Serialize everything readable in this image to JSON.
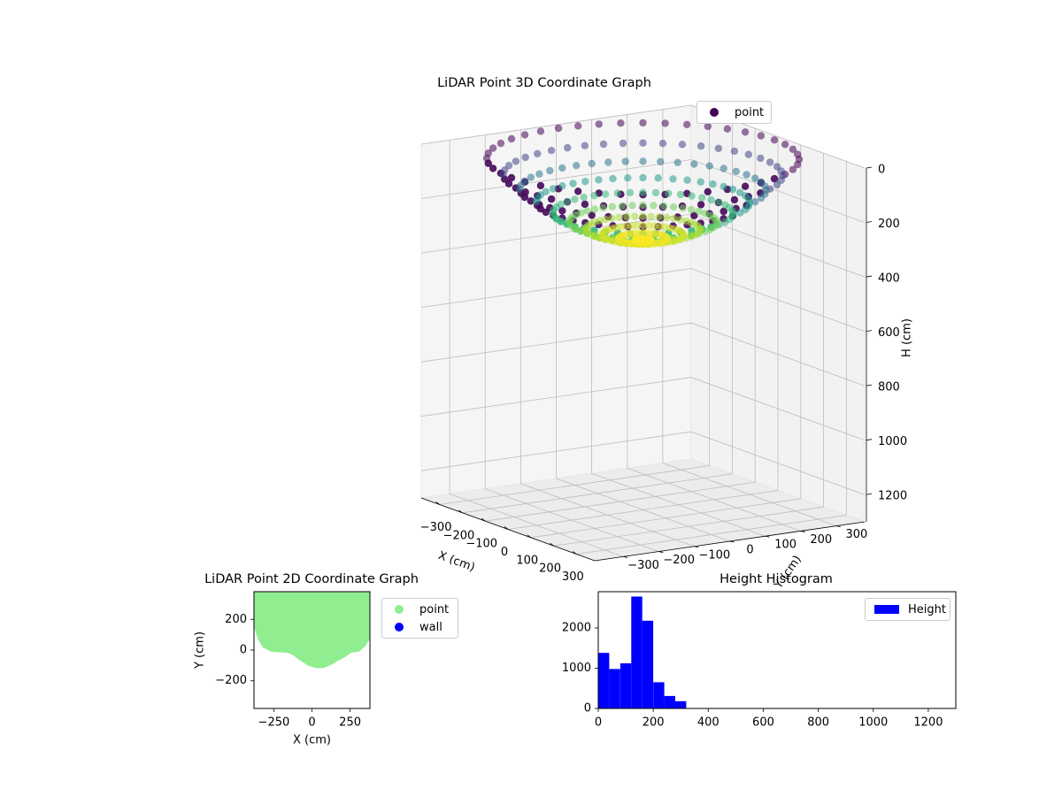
{
  "figure": {
    "background": "#ffffff"
  },
  "chart_data": [
    {
      "type": "scatter3d",
      "title": "LiDAR Point 3D Coordinate Graph",
      "xlabel": "X (cm)",
      "ylabel": "Y (cm)",
      "zlabel": "H (cm)",
      "x_ticks": [
        -300,
        -200,
        -100,
        0,
        100,
        200,
        300
      ],
      "x_tick_labels": [
        "−300",
        "−200",
        "−100",
        "0",
        "100",
        "200",
        "300"
      ],
      "y_ticks": [
        -300,
        -200,
        -100,
        0,
        100,
        200,
        300
      ],
      "y_tick_labels": [
        "−300",
        "−200",
        "−100",
        "0",
        "100",
        "200",
        "300"
      ],
      "z_ticks": [
        0,
        200,
        400,
        600,
        800,
        1000,
        1200
      ],
      "z_tick_labels": [
        "0",
        "200",
        "400",
        "600",
        "800",
        "1000",
        "1200"
      ],
      "xlim": [
        -380,
        380
      ],
      "ylim": [
        -380,
        380
      ],
      "zlim": [
        0,
        1300
      ],
      "z_inverted": true,
      "colormap": "viridis",
      "grid": true,
      "legend": {
        "placement": "upper-right",
        "entries": [
          {
            "label": "point",
            "color": "#440154"
          }
        ]
      },
      "shape": "bowl-shaped point cloud",
      "rim_radius": 370,
      "bottom_center_height": 310,
      "rim_height": 10
    },
    {
      "type": "scatter",
      "title": "LiDAR Point 2D Coordinate Graph",
      "xlabel": "X (cm)",
      "ylabel": "Y (cm)",
      "x_ticks": [
        -250,
        0,
        250
      ],
      "x_tick_labels": [
        "−250",
        "0",
        "250"
      ],
      "y_ticks": [
        -200,
        0,
        200
      ],
      "y_tick_labels": [
        "−200",
        "0",
        "200"
      ],
      "xlim": [
        -380,
        380
      ],
      "ylim": [
        -380,
        380
      ],
      "series": [
        {
          "name": "point",
          "color": "#90ee90"
        },
        {
          "name": "wall",
          "color": "#0000ff"
        }
      ],
      "legend": {
        "placement": "outside-right"
      },
      "filled_region_outline": [
        [
          -390,
          380
        ],
        [
          -390,
          300
        ],
        [
          -380,
          230
        ],
        [
          -360,
          150
        ],
        [
          -340,
          80
        ],
        [
          -310,
          30
        ],
        [
          -260,
          5
        ],
        [
          -160,
          0
        ],
        [
          -120,
          -15
        ],
        [
          -80,
          -45
        ],
        [
          -20,
          -85
        ],
        [
          30,
          -100
        ],
        [
          70,
          -100
        ],
        [
          120,
          -80
        ],
        [
          170,
          -50
        ],
        [
          210,
          -30
        ],
        [
          250,
          0
        ],
        [
          300,
          5
        ],
        [
          340,
          40
        ],
        [
          370,
          90
        ],
        [
          390,
          150
        ],
        [
          390,
          380
        ]
      ]
    },
    {
      "type": "histogram",
      "title": "Height Histogram",
      "xlabel": "",
      "ylabel": "",
      "x_ticks": [
        0,
        200,
        400,
        600,
        800,
        1000,
        1200
      ],
      "x_tick_labels": [
        "0",
        "200",
        "400",
        "600",
        "800",
        "1000",
        "1200"
      ],
      "y_ticks": [
        0,
        1000,
        2000
      ],
      "y_tick_labels": [
        "0",
        "1000",
        "2000"
      ],
      "xlim": [
        0,
        1300
      ],
      "ylim": [
        0,
        2900
      ],
      "bin_width": 40,
      "bin_edges": [
        0,
        40,
        80,
        120,
        160,
        200,
        240,
        280,
        320
      ],
      "values": [
        1380,
        980,
        1120,
        2780,
        2180,
        650,
        310,
        180,
        70
      ],
      "series": [
        {
          "name": "Height",
          "color": "#0000ff"
        }
      ],
      "legend": {
        "placement": "upper-right"
      }
    }
  ]
}
